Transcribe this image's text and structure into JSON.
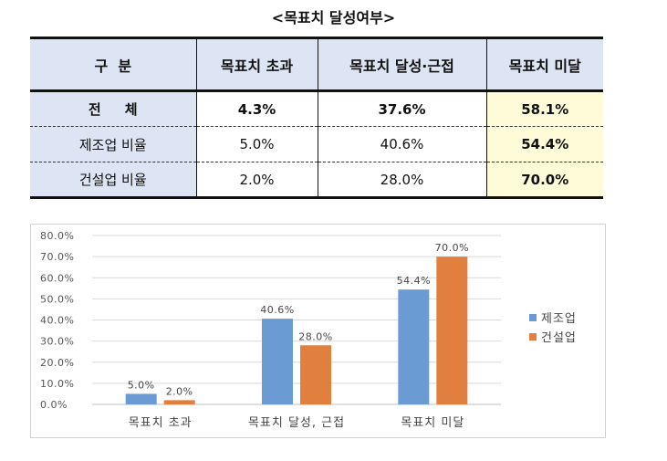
{
  "title": "<목표치 달성여부>",
  "table": {
    "headers": [
      "구  분",
      "목표치 초과",
      "목표치 달성·근접",
      "목표치 미달"
    ],
    "rows": [
      {
        "label": "전     체",
        "values": [
          "4.3%",
          "37.6%",
          "58.1%"
        ]
      },
      {
        "label": "제조업 비율",
        "values": [
          "5.0%",
          "40.6%",
          "54.4%"
        ]
      },
      {
        "label": "건설업 비율",
        "values": [
          "2.0%",
          "28.0%",
          "70.0%"
        ]
      }
    ]
  },
  "chart_data": {
    "type": "bar",
    "categories": [
      "목표치 초과",
      "목표치 달성, 근접",
      "목표치 미달"
    ],
    "series": [
      {
        "name": "제조업",
        "values": [
          5.0,
          40.6,
          54.4
        ],
        "labels": [
          "5.0%",
          "40.6%",
          "54.4%"
        ],
        "color": "#6a9bd3"
      },
      {
        "name": "건설업",
        "values": [
          2.0,
          28.0,
          70.0
        ],
        "labels": [
          "2.0%",
          "28.0%",
          "70.0%"
        ],
        "color": "#e17f3f"
      }
    ],
    "ylim": [
      0,
      80
    ],
    "yticks": [
      "0.0%",
      "10.0%",
      "20.0%",
      "30.0%",
      "40.0%",
      "50.0%",
      "60.0%",
      "70.0%",
      "80.0%"
    ],
    "legend_position": "right",
    "grid": true
  }
}
